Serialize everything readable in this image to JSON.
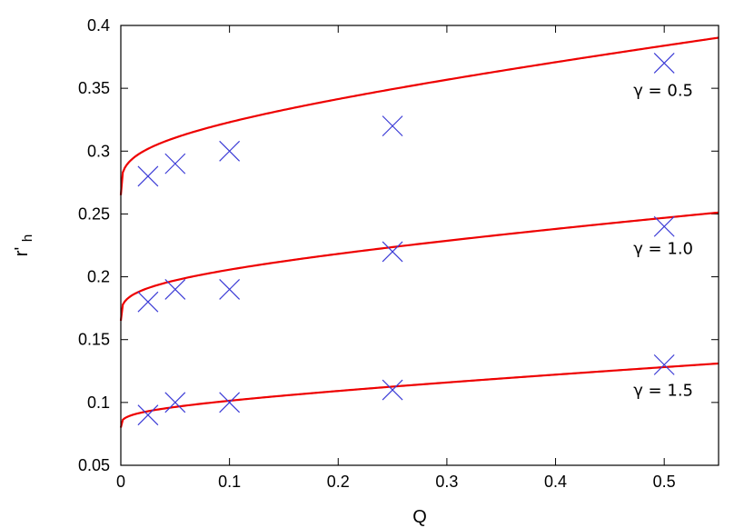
{
  "chart_data": {
    "type": "line",
    "xlabel": "Q",
    "ylabel_main": "r'",
    "ylabel_sub": "h",
    "xlim": [
      0,
      0.55
    ],
    "ylim": [
      0.05,
      0.4
    ],
    "x_ticks": [
      0,
      0.1,
      0.2,
      0.3,
      0.4,
      0.5
    ],
    "x_tick_labels": [
      "0",
      "0.1",
      "0.2",
      "0.3",
      "0.4",
      "0.5"
    ],
    "y_ticks": [
      0.05,
      0.1,
      0.15,
      0.2,
      0.25,
      0.3,
      0.35,
      0.4
    ],
    "y_tick_labels": [
      "0.05",
      "0.1",
      "0.15",
      "0.2",
      "0.25",
      "0.3",
      "0.35",
      "0.4"
    ],
    "grid": false,
    "line_color": "#ee0000",
    "marker_color": "#3b3bd6",
    "series": [
      {
        "annotation": "γ = 0.5",
        "curve": {
          "y0": 0.265,
          "a": 0.0868,
          "b": 0.0918
        },
        "points": {
          "x": [
            0.025,
            0.05,
            0.1,
            0.25,
            0.5
          ],
          "y": [
            0.28,
            0.29,
            0.3,
            0.32,
            0.37
          ]
        }
      },
      {
        "annotation": "γ = 1.0",
        "curve": {
          "y0": 0.165,
          "a": 0.0616,
          "b": 0.0602
        },
        "points": {
          "x": [
            0.025,
            0.05,
            0.1,
            0.25,
            0.5
          ],
          "y": [
            0.18,
            0.19,
            0.19,
            0.22,
            0.24
          ]
        }
      },
      {
        "annotation": "γ = 1.5",
        "curve": {
          "y0": 0.08,
          "a": 0.0298,
          "b": 0.0461
        },
        "points": {
          "x": [
            0.025,
            0.05,
            0.1,
            0.25,
            0.5
          ],
          "y": [
            0.09,
            0.1,
            0.1,
            0.11,
            0.13
          ]
        }
      }
    ]
  }
}
